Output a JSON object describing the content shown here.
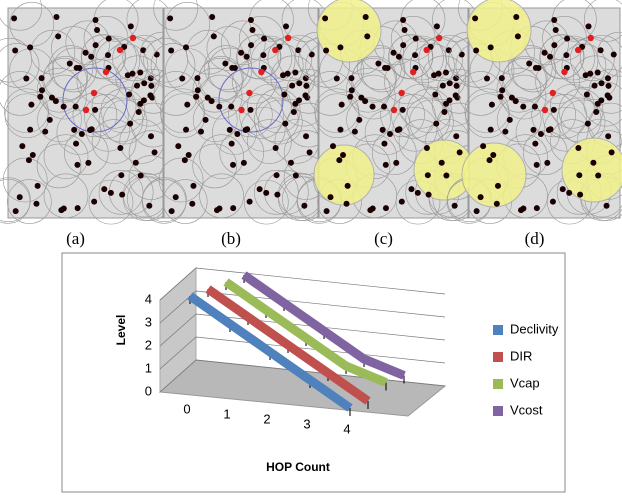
{
  "panel_labels": [
    "(a)",
    "(b)",
    "(c)",
    "(d)"
  ],
  "chart_data": {
    "type": "line3d",
    "y_label": "Level",
    "x_label": "HOP Count",
    "categories": [
      "0",
      "1",
      "2",
      "3",
      "4"
    ],
    "ylim": [
      0,
      4
    ],
    "yticks": [
      0,
      1,
      2,
      3,
      4
    ],
    "grid": true,
    "legend": "right",
    "series": [
      {
        "name": "Declivity",
        "color": "#4f81bd",
        "values": [
          4,
          3,
          2,
          1,
          0
        ]
      },
      {
        "name": "DIR",
        "color": "#c0504d",
        "values": [
          4,
          3,
          2,
          1,
          0
        ]
      },
      {
        "name": "Vcap",
        "color": "#9bbb59",
        "values": [
          4,
          3,
          2,
          1,
          0.5
        ]
      },
      {
        "name": "Vcost",
        "color": "#8064a2",
        "values": [
          4,
          3,
          2,
          1,
          0.5
        ]
      }
    ]
  }
}
